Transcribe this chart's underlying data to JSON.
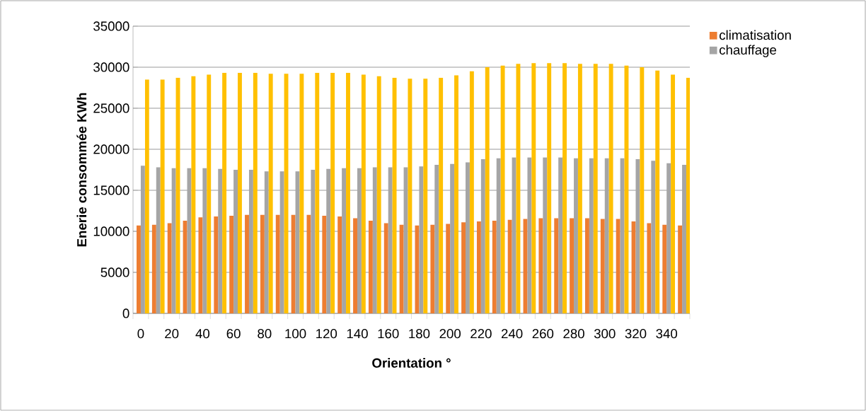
{
  "chart_data": {
    "type": "bar",
    "xlabel": "Orientation °",
    "ylabel": "Enerie consommée  KWh",
    "categories": [
      "0",
      null,
      "20",
      null,
      "40",
      null,
      "60",
      null,
      "80",
      null,
      "100",
      null,
      "120",
      null,
      "140",
      null,
      "160",
      null,
      "180",
      null,
      "200",
      null,
      "220",
      null,
      "240",
      null,
      "260",
      null,
      "280",
      null,
      "300",
      null,
      "320",
      null,
      "340",
      null
    ],
    "series": [
      {
        "name": "climatisation",
        "color": "#ed7d31",
        "values": [
          10700,
          10800,
          11000,
          11300,
          11700,
          11800,
          11900,
          12000,
          12000,
          12000,
          12000,
          12000,
          11900,
          11800,
          11600,
          11300,
          11000,
          10800,
          10700,
          10800,
          10900,
          11100,
          11200,
          11300,
          11400,
          11500,
          11600,
          11600,
          11600,
          11600,
          11500,
          11500,
          11200,
          11000,
          10800,
          10700
        ]
      },
      {
        "name": "chauffage",
        "color": "#a5a5a5",
        "values": [
          18000,
          17800,
          17700,
          17700,
          17700,
          17600,
          17500,
          17500,
          17300,
          17300,
          17300,
          17500,
          17600,
          17700,
          17700,
          17800,
          17800,
          17800,
          17900,
          18100,
          18200,
          18400,
          18800,
          18900,
          19000,
          19000,
          19000,
          19000,
          18900,
          18900,
          18900,
          18900,
          18800,
          18600,
          18300,
          18100
        ]
      },
      {
        "color": "#ffc000",
        "values": [
          28500,
          28500,
          28700,
          28900,
          29100,
          29300,
          29300,
          29300,
          29200,
          29200,
          29200,
          29300,
          29300,
          29300,
          29100,
          28900,
          28700,
          28600,
          28600,
          28700,
          29000,
          29500,
          30000,
          30200,
          30400,
          30500,
          30500,
          30500,
          30400,
          30400,
          30400,
          30200,
          30000,
          29600,
          29100,
          28700
        ]
      }
    ],
    "ylim": [
      0,
      35000
    ],
    "yticks": [
      0,
      5000,
      10000,
      15000,
      20000,
      25000,
      30000,
      35000
    ],
    "grid": "y",
    "legend": "top right"
  }
}
